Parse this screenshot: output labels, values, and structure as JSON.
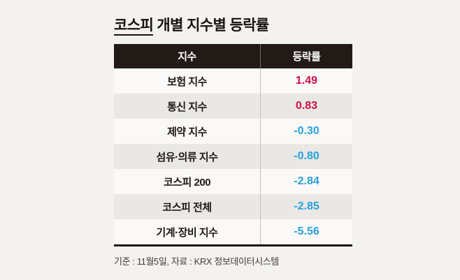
{
  "title": {
    "highlight": "코스피",
    "rest": " 개별 지수별 등락률"
  },
  "table": {
    "headers": {
      "index": "지수",
      "change": "등락률"
    },
    "rows": [
      {
        "name": "보험 지수",
        "value": "1.49",
        "direction": "up"
      },
      {
        "name": "통신 지수",
        "value": "0.83",
        "direction": "up"
      },
      {
        "name": "제약 지수",
        "value": "-0.30",
        "direction": "down"
      },
      {
        "name": "섬유·의류 지수",
        "value": "-0.80",
        "direction": "down"
      },
      {
        "name": "코스피 200",
        "value": "-2.84",
        "direction": "down"
      },
      {
        "name": "코스피 전체",
        "value": "-2.85",
        "direction": "down"
      },
      {
        "name": "기계·장비 지수",
        "value": "-5.56",
        "direction": "down"
      }
    ]
  },
  "footer": {
    "note": "기준 : 11월5일, 자료 : KRX 정보데이터시스템"
  },
  "colors": {
    "positive": "#cf0f4e",
    "negative": "#2aa1dc",
    "header_bg": "#221a16",
    "stripe": "#e9e8e5",
    "background": "#f3f2f0"
  },
  "chart_data": {
    "type": "table",
    "title": "코스피 개별 지수별 등락률",
    "columns": [
      "지수",
      "등락률"
    ],
    "rows": [
      [
        "보험 지수",
        1.49
      ],
      [
        "통신 지수",
        0.83
      ],
      [
        "제약 지수",
        -0.3
      ],
      [
        "섬유·의류 지수",
        -0.8
      ],
      [
        "코스피 200",
        -2.84
      ],
      [
        "코스피 전체",
        -2.85
      ],
      [
        "기계·장비 지수",
        -5.56
      ]
    ],
    "note": "기준 : 11월5일, 자료 : KRX 정보데이터시스템",
    "layout": "positive values red, negative values blue, alternating row stripes, dark header band"
  }
}
